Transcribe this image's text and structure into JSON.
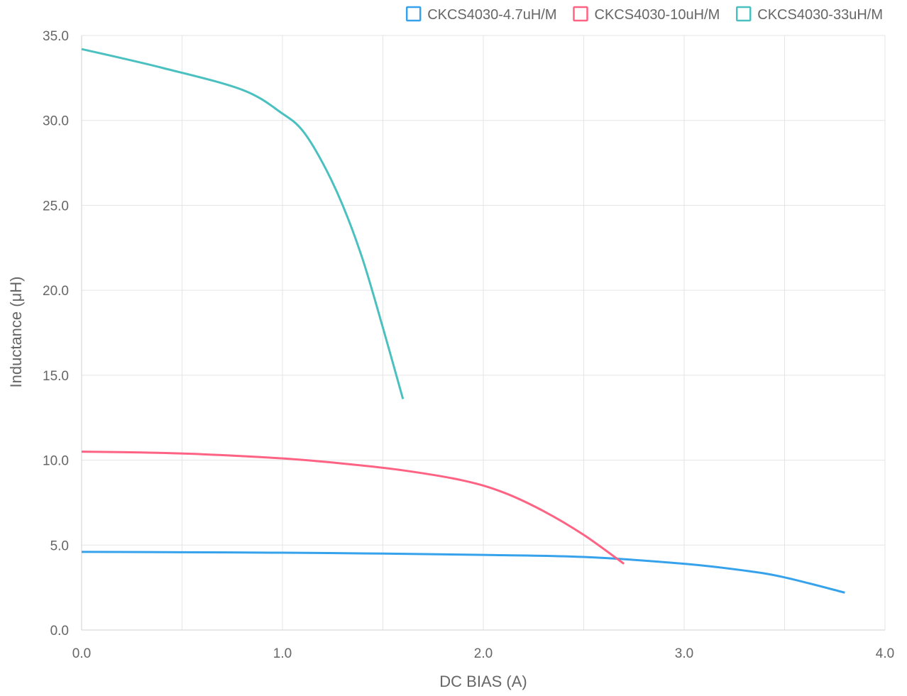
{
  "chart_data": {
    "type": "line",
    "xlabel": "DC BIAS (A)",
    "ylabel": "Inductance (μH)",
    "xlim": [
      0,
      4
    ],
    "ylim": [
      0,
      35
    ],
    "x_ticks": [
      "0.0",
      "1.0",
      "2.0",
      "3.0",
      "4.0"
    ],
    "y_ticks": [
      "0.0",
      "5.0",
      "10.0",
      "15.0",
      "20.0",
      "25.0",
      "30.0",
      "35.0"
    ],
    "grid": true,
    "legend_position": "top-right",
    "series": [
      {
        "name": "CKCS4030-4.7uH/M",
        "color": "#36a2eb",
        "x": [
          0.0,
          0.5,
          1.0,
          1.5,
          2.0,
          2.5,
          3.0,
          3.3,
          3.5,
          3.8
        ],
        "y": [
          4.6,
          4.58,
          4.55,
          4.5,
          4.42,
          4.3,
          3.9,
          3.5,
          3.1,
          2.2
        ]
      },
      {
        "name": "CKCS4030-10uH/M",
        "color": "#ff6384",
        "x": [
          0.0,
          0.3,
          0.6,
          1.0,
          1.3,
          1.6,
          1.9,
          2.1,
          2.3,
          2.5,
          2.7
        ],
        "y": [
          10.5,
          10.45,
          10.35,
          10.1,
          9.8,
          9.4,
          8.8,
          8.1,
          7.0,
          5.6,
          3.9
        ]
      },
      {
        "name": "CKCS4030-33uH/M",
        "color": "#4bc0c0",
        "x": [
          0.0,
          0.4,
          0.8,
          1.0,
          1.1,
          1.2,
          1.3,
          1.4,
          1.5,
          1.6
        ],
        "y": [
          34.2,
          33.1,
          31.8,
          30.4,
          29.4,
          27.5,
          25.0,
          21.8,
          17.8,
          13.6
        ]
      }
    ]
  }
}
